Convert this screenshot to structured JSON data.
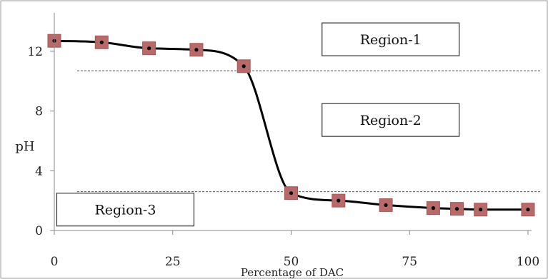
{
  "chart_data": {
    "type": "line",
    "title": "",
    "xlabel": "Percentage of DAC",
    "ylabel": "pH",
    "xlim": [
      0,
      100
    ],
    "ylim": [
      0,
      14
    ],
    "x_ticks": [
      "0",
      "25",
      "50",
      "75",
      "100"
    ],
    "y_ticks": [
      "0",
      "4",
      "8",
      "12"
    ],
    "series": [
      {
        "x": [
          0,
          10,
          20,
          30,
          40,
          50,
          60,
          70,
          80,
          85,
          90,
          100
        ],
        "y": [
          12.7,
          12.6,
          12.2,
          12.1,
          11.0,
          2.5,
          2.0,
          1.7,
          1.5,
          1.45,
          1.4,
          1.4
        ]
      }
    ],
    "thresholds": [
      10.7,
      2.6
    ],
    "regions": [
      {
        "label": "Region-1",
        "x": 71,
        "y": 12.8
      },
      {
        "label": "Region-2",
        "x": 71,
        "y": 7.4
      },
      {
        "label": "Region-3",
        "x": 15,
        "y": 1.4
      }
    ],
    "colors": {
      "line": "#000000",
      "marker_fill": "#b86a6a",
      "marker_edge": "#a45757",
      "dashed": "#555555",
      "frame": "#999999"
    },
    "grid": false,
    "legend": "none"
  }
}
